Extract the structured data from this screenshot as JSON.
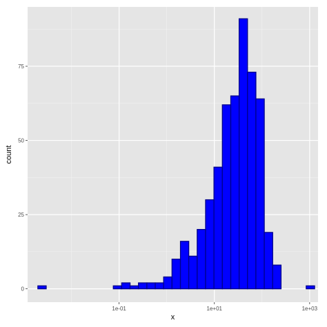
{
  "chart_data": {
    "type": "bar",
    "xlabel": "x",
    "ylabel": "count",
    "x_scale": "log10",
    "xlim": [
      0.0012,
      1500
    ],
    "ylim": [
      -4.5,
      95
    ],
    "x_ticks": [
      {
        "value": 0.1,
        "label": "1e-01"
      },
      {
        "value": 10,
        "label": "1e+01"
      },
      {
        "value": 1000,
        "label": "1e+03"
      }
    ],
    "y_ticks": [
      {
        "value": 0,
        "label": "0"
      },
      {
        "value": 25,
        "label": "25"
      },
      {
        "value": 50,
        "label": "50"
      },
      {
        "value": 75,
        "label": "75"
      }
    ],
    "bins": [
      {
        "x_min": 0.00197,
        "x_max": 0.00295,
        "count": 1
      },
      {
        "x_min": 0.00295,
        "x_max": 0.00443,
        "count": 0
      },
      {
        "x_min": 0.00443,
        "x_max": 0.00664,
        "count": 0
      },
      {
        "x_min": 0.00664,
        "x_max": 0.00996,
        "count": 0
      },
      {
        "x_min": 0.00996,
        "x_max": 0.01494,
        "count": 0
      },
      {
        "x_min": 0.01494,
        "x_max": 0.0224,
        "count": 0
      },
      {
        "x_min": 0.0224,
        "x_max": 0.0336,
        "count": 0
      },
      {
        "x_min": 0.0336,
        "x_max": 0.0504,
        "count": 0
      },
      {
        "x_min": 0.0504,
        "x_max": 0.0756,
        "count": 0
      },
      {
        "x_min": 0.0756,
        "x_max": 0.1134,
        "count": 1
      },
      {
        "x_min": 0.1134,
        "x_max": 0.17,
        "count": 2
      },
      {
        "x_min": 0.17,
        "x_max": 0.255,
        "count": 1
      },
      {
        "x_min": 0.255,
        "x_max": 0.383,
        "count": 2
      },
      {
        "x_min": 0.383,
        "x_max": 0.574,
        "count": 2
      },
      {
        "x_min": 0.574,
        "x_max": 0.861,
        "count": 2
      },
      {
        "x_min": 0.861,
        "x_max": 1.29,
        "count": 4
      },
      {
        "x_min": 1.29,
        "x_max": 1.94,
        "count": 10
      },
      {
        "x_min": 1.94,
        "x_max": 2.9,
        "count": 16
      },
      {
        "x_min": 2.9,
        "x_max": 4.36,
        "count": 11
      },
      {
        "x_min": 4.36,
        "x_max": 6.54,
        "count": 20
      },
      {
        "x_min": 6.54,
        "x_max": 9.8,
        "count": 30
      },
      {
        "x_min": 9.8,
        "x_max": 14.7,
        "count": 41
      },
      {
        "x_min": 14.7,
        "x_max": 22.1,
        "count": 62
      },
      {
        "x_min": 22.1,
        "x_max": 33.1,
        "count": 65
      },
      {
        "x_min": 33.1,
        "x_max": 49.6,
        "count": 91
      },
      {
        "x_min": 49.6,
        "x_max": 74.4,
        "count": 73
      },
      {
        "x_min": 74.4,
        "x_max": 111.6,
        "count": 64
      },
      {
        "x_min": 111.6,
        "x_max": 167.5,
        "count": 19
      },
      {
        "x_min": 167.5,
        "x_max": 251,
        "count": 8
      },
      {
        "x_min": 251,
        "x_max": 377,
        "count": 0
      },
      {
        "x_min": 377,
        "x_max": 565,
        "count": 0
      },
      {
        "x_min": 565,
        "x_max": 847,
        "count": 0
      },
      {
        "x_min": 847,
        "x_max": 1271,
        "count": 1
      }
    ],
    "grid": true,
    "legend": "none",
    "colors": {
      "bar_fill": "#0000ff",
      "bar_outline": "#00008b",
      "panel_background": "#e5e5e5",
      "grid_major": "#ffffff",
      "grid_minor": "#f2f2f2",
      "tick_text": "#4d4d4d",
      "axis_text": "#000000"
    }
  }
}
